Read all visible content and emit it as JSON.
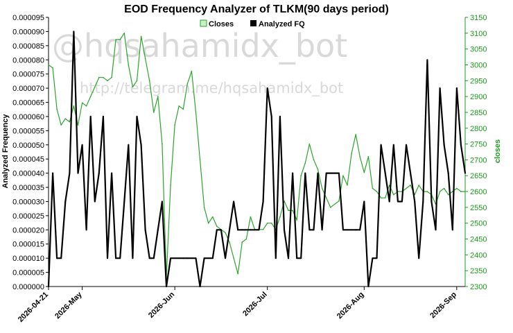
{
  "watermark": {
    "main": "@hqsahamidx_bot",
    "url": "http://telegram.me/hqsahamidx_bot"
  },
  "colors": {
    "closes": "#2aa52a",
    "fq": "#000000",
    "right_axis": "#1a9a1a"
  },
  "chart_data": {
    "type": "line",
    "title": "EOD Frequency Analyzer of TLKM(90 days period)",
    "ylabel_left": "Analyzed Frequency",
    "ylabel_right": "closes",
    "legend": {
      "placement": "top-center",
      "entries": [
        "Closes",
        "Analyzed FQ"
      ]
    },
    "y_left": {
      "min": 0,
      "max": 9.5e-05,
      "ticks": [
        "0.000000",
        "0.000005",
        "0.000010",
        "0.000015",
        "0.000020",
        "0.000025",
        "0.000030",
        "0.000035",
        "0.000040",
        "0.000045",
        "0.000050",
        "0.000055",
        "0.000060",
        "0.000065",
        "0.000070",
        "0.000075",
        "0.000080",
        "0.000085",
        "0.000090",
        "0.000095"
      ]
    },
    "y_right": {
      "min": 2300,
      "max": 3150,
      "ticks": [
        "2300",
        "2350",
        "2400",
        "2450",
        "2500",
        "2550",
        "2600",
        "2650",
        "2700",
        "2750",
        "2800",
        "2850",
        "2900",
        "2950",
        "3000",
        "3050",
        "3100",
        "3150"
      ]
    },
    "x_ticks": [
      {
        "label": "2026-04-21",
        "index": 0
      },
      {
        "label": "2026-May",
        "index": 8
      },
      {
        "label": "2026-Jun",
        "index": 30
      },
      {
        "label": "2026-Jul",
        "index": 52
      },
      {
        "label": "2026-Aug",
        "index": 75
      },
      {
        "label": "2026-Sep",
        "index": 97
      }
    ],
    "n_points": 100,
    "grid": false,
    "series": [
      {
        "name": "Closes",
        "axis": "right",
        "values": [
          3000,
          2990,
          2860,
          2810,
          2830,
          2820,
          2870,
          2810,
          2880,
          2870,
          2900,
          2930,
          2960,
          2960,
          2950,
          2960,
          3080,
          3080,
          3100,
          3000,
          2930,
          2950,
          3090,
          3020,
          2950,
          2850,
          2900,
          2750,
          2330,
          2620,
          2810,
          2870,
          2860,
          2940,
          2980,
          2850,
          2700,
          2550,
          2500,
          2520,
          2490,
          2480,
          2470,
          2440,
          2390,
          2340,
          2440,
          2450,
          2520,
          2480,
          2480,
          2480,
          2500,
          2500,
          2480,
          2520,
          2570,
          2540,
          2540,
          2510,
          2650,
          2690,
          2750,
          2700,
          2670,
          2610,
          2580,
          2550,
          2560,
          2570,
          2650,
          2620,
          2720,
          2780,
          2710,
          2660,
          2710,
          2610,
          2600,
          2580,
          2580,
          2620,
          2590,
          2600,
          2600,
          2610,
          2620,
          2590,
          2620,
          2600,
          2600,
          2590,
          2560,
          2600,
          2610,
          2590,
          2600,
          2610,
          2600,
          2600
        ]
      },
      {
        "name": "Analyzed FQ",
        "axis": "left",
        "values": [
          0.0,
          4e-05,
          1e-05,
          1e-05,
          3e-05,
          4e-05,
          9e-05,
          4e-05,
          5e-05,
          2e-05,
          6e-05,
          3e-05,
          4e-05,
          6e-05,
          1e-05,
          4e-05,
          1e-05,
          1e-05,
          3e-05,
          5e-05,
          1e-05,
          6e-05,
          5e-05,
          2e-05,
          1e-05,
          1e-05,
          2e-05,
          3e-05,
          0.0,
          1e-05,
          1e-05,
          1e-05,
          1e-05,
          1e-05,
          1e-05,
          1e-05,
          0.0,
          1e-05,
          1e-05,
          1e-05,
          2e-05,
          2e-05,
          1e-05,
          2e-05,
          3e-05,
          2e-05,
          2e-05,
          2e-05,
          2e-05,
          2e-05,
          2e-05,
          3e-05,
          7e-05,
          6e-05,
          1e-05,
          6e-05,
          2e-05,
          1e-05,
          4e-05,
          1e-05,
          1e-05,
          4e-05,
          2e-05,
          2e-05,
          4e-05,
          2e-05,
          4e-05,
          4e-05,
          4e-05,
          4e-05,
          2e-05,
          2e-05,
          2e-05,
          2e-05,
          2e-05,
          3e-05,
          0.0,
          1e-05,
          1e-05,
          5e-05,
          4e-05,
          3e-05,
          5e-05,
          3e-05,
          3e-05,
          5e-05,
          4e-05,
          3e-05,
          1e-05,
          3e-05,
          8e-05,
          3e-05,
          2e-05,
          7e-05,
          5e-05,
          4e-05,
          2e-05,
          7e-05,
          5e-05,
          4e-05
        ]
      }
    ]
  }
}
